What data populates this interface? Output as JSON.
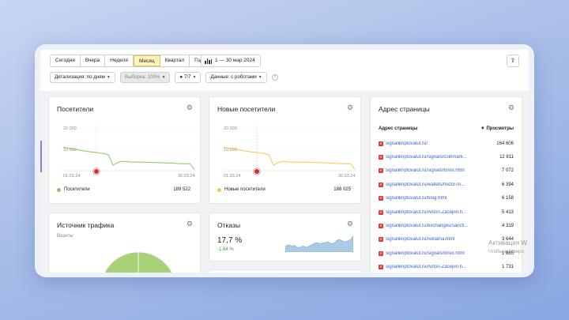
{
  "toolbar": {
    "periods": [
      "Сегодня",
      "Вчера",
      "Неделя",
      "Месяц",
      "Квартал",
      "Год"
    ],
    "active_period": "Месяц",
    "date_range": "1 — 30 мар 2024"
  },
  "filters": {
    "detail": "Детализация: по дням",
    "sample": "Выборка: 100%",
    "segments": "7/7",
    "data": "Данные: с роботами"
  },
  "visitors": {
    "title": "Посетители",
    "y_ticks": [
      "20 000",
      "10 000"
    ],
    "x_start": "01.03.24",
    "x_end": "30.03.24",
    "legend": "Посетители",
    "total": "189 522",
    "color": "#8cc66a"
  },
  "new_visitors": {
    "title": "Новые посетители",
    "y_ticks": [
      "20 000",
      "10 000"
    ],
    "x_start": "01.03.24",
    "x_end": "30.03.24",
    "legend": "Новые посетители",
    "total": "188 025",
    "color": "#f2c94c"
  },
  "page_address": {
    "title": "Адрес страницы",
    "col_page": "Адрес страницы",
    "col_views": "▼ Просмотры",
    "rows": [
      {
        "url": "signalikriptovalut.ru/",
        "views": "164 606"
      },
      {
        "url": "signalikriptovalut.ru/signals/coinmark...",
        "views": "12 811"
      },
      {
        "url": "signalikriptovalut.ru/signals/forex.html",
        "views": "7 072"
      },
      {
        "url": "signalikriptovalut.ru/wallets/trezor-m...",
        "views": "6 394"
      },
      {
        "url": "signalikriptovalut.ru/blog.html",
        "views": "6 158"
      },
      {
        "url": "signalikriptovalut.ru/Anton-Zacepin.h...",
        "views": "5 413"
      },
      {
        "url": "signalikriptovalut.ru/exchanges/sancti...",
        "views": "4 319"
      },
      {
        "url": "signalikriptovalut.ru/reklama.html",
        "views": "3 644"
      },
      {
        "url": "signalikriptovalut.ru/signals/forex.html",
        "views": "1 865"
      },
      {
        "url": "signalikriptovalut.ru/Anton-Zacepin.h...",
        "views": "1 731"
      }
    ]
  },
  "traffic_source": {
    "title": "Источник трафика",
    "subtitle": "Визиты"
  },
  "bounce": {
    "title": "Отказы",
    "value": "17,7 %",
    "delta": "-1,64 %"
  },
  "watermark": {
    "line1": "Активация W",
    "line2": "Чтобы активиро"
  },
  "chart_data": [
    {
      "type": "line",
      "series": [
        {
          "name": "Посетители",
          "values": [
            13000,
            12500,
            12000,
            11700,
            11200,
            10800,
            10500,
            10200,
            9800,
            9500,
            8800,
            3000,
            4500,
            5200,
            5000,
            4800,
            4800,
            4700,
            4700,
            4600,
            4500,
            4500,
            4400,
            4300,
            4200,
            4000,
            3900,
            3800,
            3900,
            700
          ]
        }
      ],
      "ylim": [
        0,
        25000
      ]
    },
    {
      "type": "line",
      "series": [
        {
          "name": "Новые посетители",
          "values": [
            13000,
            12500,
            12000,
            11700,
            11200,
            10800,
            10500,
            10200,
            9800,
            9500,
            8800,
            3000,
            4500,
            5200,
            5000,
            4800,
            4800,
            4700,
            4700,
            4600,
            4500,
            4500,
            4400,
            4300,
            4200,
            4000,
            3900,
            3800,
            3900,
            700
          ]
        }
      ],
      "ylim": [
        0,
        25000
      ]
    },
    {
      "type": "area",
      "series": [
        {
          "name": "Отказы",
          "values": [
            15,
            16,
            16,
            15,
            16,
            14,
            14,
            15,
            15,
            14,
            15,
            16,
            17,
            18,
            18,
            17,
            18,
            18,
            19,
            18,
            17,
            18,
            20,
            21,
            20,
            19,
            19,
            20,
            21,
            24
          ]
        }
      ]
    },
    {
      "type": "pie",
      "slices": [
        {
          "label": "",
          "value": 42,
          "color": "#a8d178"
        },
        {
          "label": "",
          "value": 2,
          "color": "#8f8fd8"
        },
        {
          "label": "",
          "value": 15,
          "color": "#e0674a"
        },
        {
          "label": "",
          "value": 23,
          "color": "#f3d36b"
        },
        {
          "label": "",
          "value": 18,
          "color": "#a8d178"
        }
      ]
    }
  ]
}
